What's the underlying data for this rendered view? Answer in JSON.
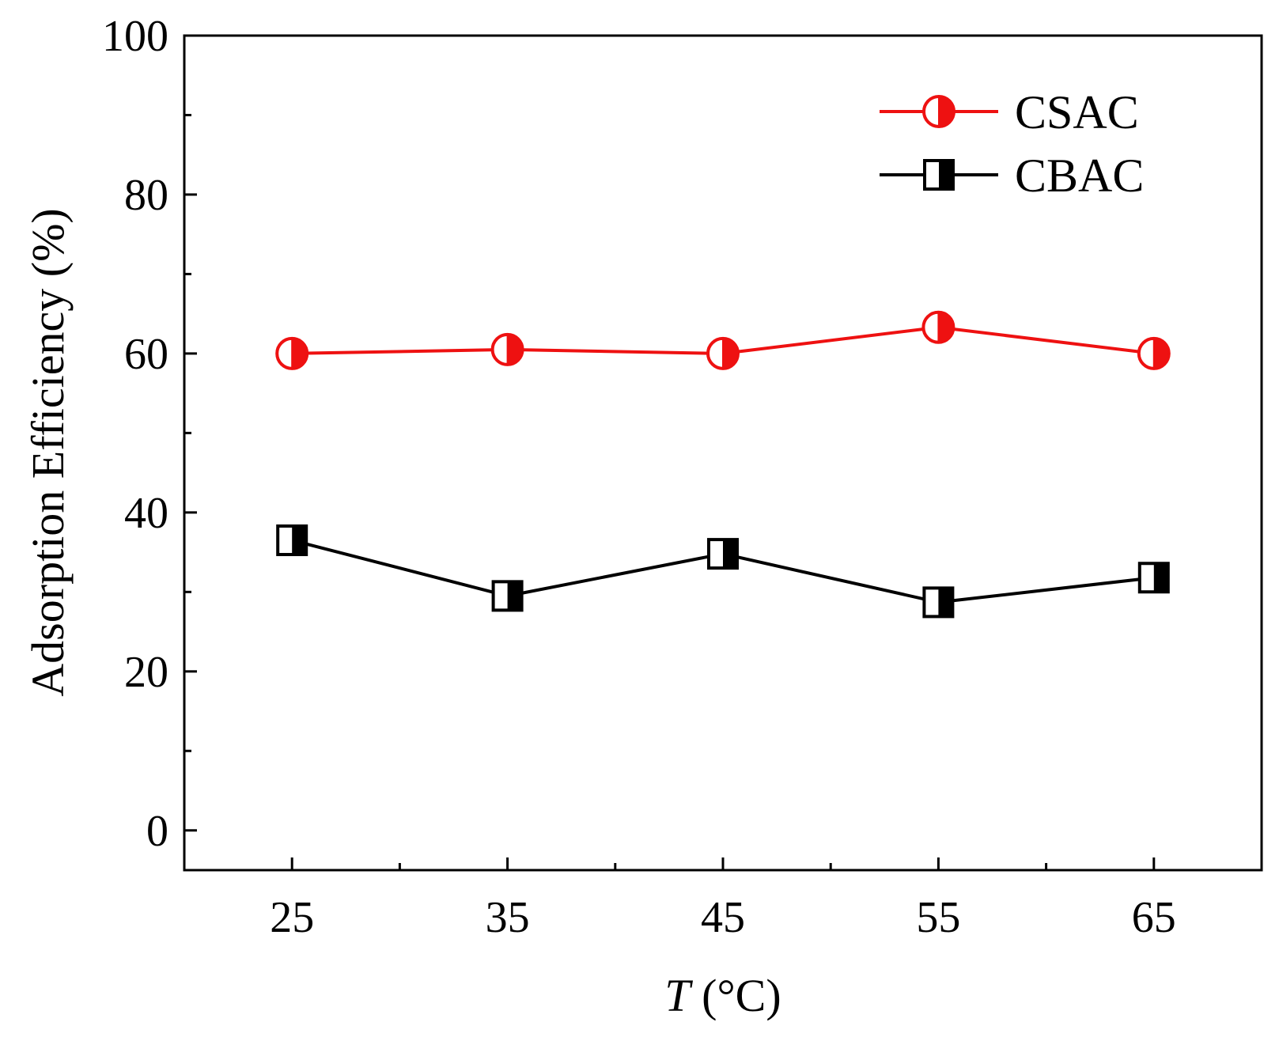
{
  "chart_data": {
    "type": "line",
    "title": "",
    "xlabel": "T (°C)",
    "xlabel_parts": {
      "italic": "T",
      "rest": " (°C)"
    },
    "ylabel": "Adsorption Efficiency (%)",
    "x": [
      25,
      35,
      45,
      55,
      65
    ],
    "x_ticks": [
      25,
      35,
      45,
      55,
      65
    ],
    "x_minor_ticks": [
      30,
      40,
      50,
      60
    ],
    "xlim": [
      20,
      70
    ],
    "y_ticks": [
      0,
      20,
      40,
      60,
      80,
      100
    ],
    "y_minor_ticks": [
      10,
      30,
      50,
      70,
      90
    ],
    "ylim": [
      -5,
      100
    ],
    "grid": false,
    "legend_position": "top-right",
    "series": [
      {
        "name": "CSAC",
        "marker": "half-filled-circle",
        "color": "#ee1111",
        "values": [
          60.0,
          60.5,
          60.0,
          63.3,
          60.0
        ]
      },
      {
        "name": "CBAC",
        "marker": "half-filled-square",
        "color": "#000000",
        "values": [
          36.5,
          29.5,
          34.8,
          28.7,
          31.8
        ]
      }
    ]
  }
}
